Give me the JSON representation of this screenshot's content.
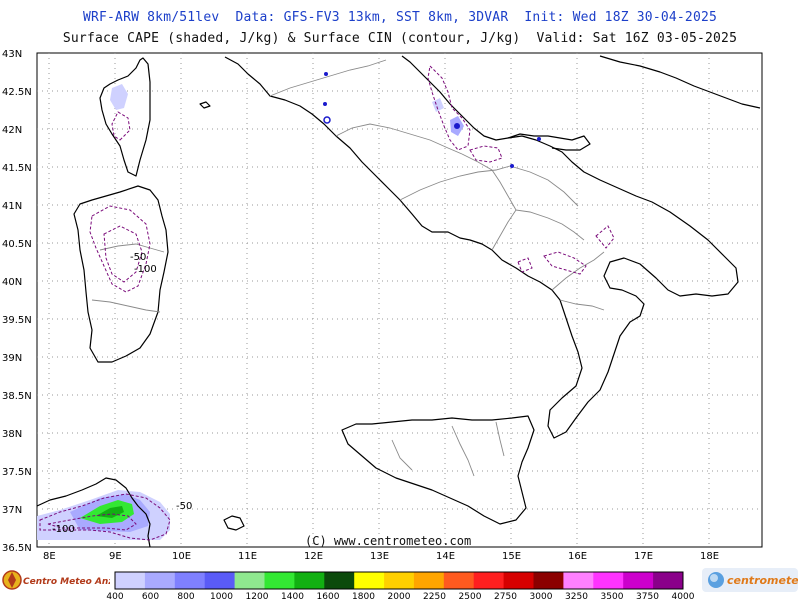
{
  "header": {
    "line1": "WRF-ARW 8km/51lev  Data: GFS-FV3 13km, SST 8km, 3DVAR  Init: Wed 18Z 30-04-2025",
    "line2": "Surface CAPE (shaded, J/kg) & Surface CIN (contour, J/kg)  Valid: Sat 16Z 03-05-2025"
  },
  "axes": {
    "lat_labels": [
      "43N",
      "42.5N",
      "42N",
      "41.5N",
      "41N",
      "40.5N",
      "40N",
      "39.5N",
      "39N",
      "38.5N",
      "38N",
      "37.5N",
      "37N",
      "36.5N"
    ],
    "lon_labels": [
      "8E",
      "9E",
      "10E",
      "11E",
      "12E",
      "13E",
      "14E",
      "15E",
      "16E",
      "17E",
      "18E"
    ]
  },
  "contour_labels": [
    {
      "text": "-50",
      "region": "sardinia"
    },
    {
      "text": "-100",
      "region": "sardinia"
    },
    {
      "text": "-100",
      "region": "tunisia"
    },
    {
      "text": "-50",
      "region": "tunisia"
    }
  ],
  "copyright": "(C) www.centrometeo.com",
  "colorbar": {
    "labels": [
      "400",
      "600",
      "800",
      "1000",
      "1200",
      "1400",
      "1600",
      "1800",
      "2000",
      "2250",
      "2500",
      "2750",
      "3000",
      "3250",
      "3500",
      "3750",
      "4000"
    ],
    "colors": [
      "#cfd1ff",
      "#a9aaff",
      "#7f80ff",
      "#5a5bf7",
      "#8fe88f",
      "#33e833",
      "#12b012",
      "#0b4a0b",
      "#ffff00",
      "#ffd000",
      "#ffa500",
      "#ff5a1f",
      "#ff1f1f",
      "#d60000",
      "#8b0000",
      "#ff80ff",
      "#ff33ff",
      "#cc00cc",
      "#8a008a"
    ]
  },
  "logos": {
    "left": "Centro Meteo Anzio",
    "right": "centrometeo"
  }
}
